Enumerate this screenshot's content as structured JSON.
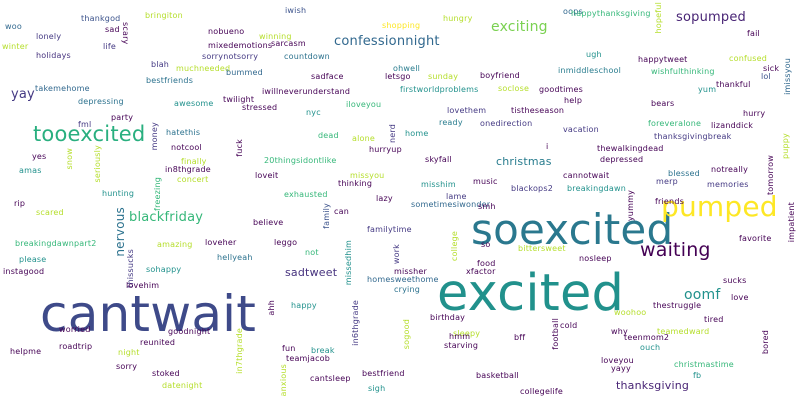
{
  "palette": {
    "dark_purple": "#440154",
    "indigo": "#3b528b",
    "blue": "#31688e",
    "teal": "#21918c",
    "green_teal": "#35b779",
    "green": "#6ece58",
    "lime": "#b5de2b",
    "yellow": "#fde725"
  },
  "words": [
    {
      "key": "cantwait",
      "text": "cantwait"
    },
    {
      "key": "excited",
      "text": "excited"
    },
    {
      "key": "soexcited",
      "text": "soexcited"
    },
    {
      "key": "pumped",
      "text": "pumped"
    },
    {
      "key": "tooexcited",
      "text": "tooexcited"
    },
    {
      "key": "waiting",
      "text": "waiting"
    },
    {
      "key": "sopumped",
      "text": "sopumped"
    },
    {
      "key": "confessionnight",
      "text": "confessionnight"
    },
    {
      "key": "exciting",
      "text": "exciting"
    },
    {
      "key": "oomf",
      "text": "oomf"
    },
    {
      "key": "blackfriday",
      "text": "blackfriday"
    },
    {
      "key": "yay",
      "text": "yay"
    },
    {
      "key": "thanksgiving",
      "text": "thanksgiving"
    },
    {
      "key": "sadtweet",
      "text": "sadtweet"
    },
    {
      "key": "christmas",
      "text": "christmas"
    },
    {
      "key": "nervous",
      "text": "nervous"
    },
    {
      "key": "thankgod",
      "text": "thankgod"
    },
    {
      "key": "bringiton",
      "text": "bringiton"
    },
    {
      "key": "nobueno",
      "text": "nobueno"
    },
    {
      "key": "iwish",
      "text": "iwish"
    },
    {
      "key": "oops",
      "text": "oops"
    },
    {
      "key": "happythanksgiving",
      "text": "happythanksgiving"
    },
    {
      "key": "hopeful",
      "text": "hopeful"
    },
    {
      "key": "woo",
      "text": "woo"
    },
    {
      "key": "lonely",
      "text": "lonely"
    },
    {
      "key": "sad",
      "text": "sad"
    },
    {
      "key": "scary",
      "text": "scary"
    },
    {
      "key": "winning",
      "text": "winning"
    },
    {
      "key": "shopping",
      "text": "shopping"
    },
    {
      "key": "hungry",
      "text": "hungry"
    },
    {
      "key": "fail",
      "text": "fail"
    },
    {
      "key": "winter",
      "text": "winter"
    },
    {
      "key": "holidays",
      "text": "holidays"
    },
    {
      "key": "life",
      "text": "life"
    },
    {
      "key": "mixedemotions",
      "text": "mixedemotions"
    },
    {
      "key": "sarcasm",
      "text": "sarcasm"
    },
    {
      "key": "ugh",
      "text": "ugh"
    },
    {
      "key": "sorrynotsorry",
      "text": "sorrynotsorry"
    },
    {
      "key": "countdown",
      "text": "countdown"
    },
    {
      "key": "happytweet",
      "text": "happytweet"
    },
    {
      "key": "confused",
      "text": "confused"
    },
    {
      "key": "blah",
      "text": "blah"
    },
    {
      "key": "muchneeded",
      "text": "muchneeded"
    },
    {
      "key": "bummed",
      "text": "bummed"
    },
    {
      "key": "sick",
      "text": "sick"
    },
    {
      "key": "imissyou",
      "text": "imissyou"
    },
    {
      "key": "wishfulthinking",
      "text": "wishfulthinking"
    },
    {
      "key": "inmiddleschool",
      "text": "inmiddleschool"
    },
    {
      "key": "lol",
      "text": "lol"
    },
    {
      "key": "bestfriends",
      "text": "bestfriends"
    },
    {
      "key": "sadface",
      "text": "sadface"
    },
    {
      "key": "letsgo",
      "text": "letsgo"
    },
    {
      "key": "sunday",
      "text": "sunday"
    },
    {
      "key": "boyfriend",
      "text": "boyfriend"
    },
    {
      "key": "thankful",
      "text": "thankful"
    },
    {
      "key": "takemehome",
      "text": "takemehome"
    },
    {
      "key": "ohwell",
      "text": "ohwell"
    },
    {
      "key": "firstworldproblems",
      "text": "firstworldproblems"
    },
    {
      "key": "socloseh",
      "text": "soclose"
    },
    {
      "key": "goodtimes",
      "text": "goodtimes"
    },
    {
      "key": "yum",
      "text": "yum"
    },
    {
      "key": "depressing",
      "text": "depressing"
    },
    {
      "key": "iwillneverunderstand",
      "text": "iwillneverunderstand"
    },
    {
      "key": "twilight",
      "text": "twilight"
    },
    {
      "key": "awesome",
      "text": "awesome"
    },
    {
      "key": "iloveyou",
      "text": "iloveyou"
    },
    {
      "key": "help",
      "text": "help"
    },
    {
      "key": "bears",
      "text": "bears"
    },
    {
      "key": "party",
      "text": "party"
    },
    {
      "key": "stressed",
      "text": "stressed"
    },
    {
      "key": "nyc",
      "text": "nyc"
    },
    {
      "key": "lovethem",
      "text": "lovethem"
    },
    {
      "key": "tistheseason",
      "text": "tistheseason"
    },
    {
      "key": "hurry",
      "text": "hurry"
    },
    {
      "key": "fml",
      "text": "fml"
    },
    {
      "key": "money",
      "text": "money"
    },
    {
      "key": "ready",
      "text": "ready"
    },
    {
      "key": "onedirection",
      "text": "onedirection"
    },
    {
      "key": "foreveralone",
      "text": "foreveralone"
    },
    {
      "key": "lizanddick",
      "text": "lizanddick"
    },
    {
      "key": "hatethis",
      "text": "hatethis"
    },
    {
      "key": "dead",
      "text": "dead"
    },
    {
      "key": "alone",
      "text": "alone"
    },
    {
      "key": "nerd",
      "text": "nerd"
    },
    {
      "key": "home",
      "text": "home"
    },
    {
      "key": "vacation",
      "text": "vacation"
    },
    {
      "key": "thanksgivingbreak",
      "text": "thanksgivingbreak"
    },
    {
      "key": "notcool",
      "text": "notcool"
    },
    {
      "key": "hurryup",
      "text": "hurryup"
    },
    {
      "key": "i",
      "text": "i"
    },
    {
      "key": "thewalkingdead",
      "text": "thewalkingdead"
    },
    {
      "key": "yes",
      "text": "yes"
    },
    {
      "key": "finally",
      "text": "finally"
    },
    {
      "key": "fuck",
      "text": "fuck"
    },
    {
      "key": "20thingsidontlike",
      "text": "20thingsidontlike"
    },
    {
      "key": "skyfall",
      "text": "skyfall"
    },
    {
      "key": "depressed",
      "text": "depressed"
    },
    {
      "key": "snow",
      "text": "snow"
    },
    {
      "key": "puppy",
      "text": "puppy"
    },
    {
      "key": "amas",
      "text": "amas"
    },
    {
      "key": "seriously",
      "text": "seriously"
    },
    {
      "key": "in8thgrade",
      "text": "in8thgrade"
    },
    {
      "key": "loveit",
      "text": "loveit"
    },
    {
      "key": "missyou",
      "text": "missyou"
    },
    {
      "key": "cannotwait",
      "text": "cannotwait"
    },
    {
      "key": "blessed",
      "text": "blessed"
    },
    {
      "key": "notreally",
      "text": "notreally"
    },
    {
      "key": "tomorrow",
      "text": "tomorrow"
    },
    {
      "key": "concert",
      "text": "concert"
    },
    {
      "key": "thinking",
      "text": "thinking"
    },
    {
      "key": "misshim",
      "text": "misshim"
    },
    {
      "key": "music",
      "text": "music"
    },
    {
      "key": "blackops2",
      "text": "blackops2"
    },
    {
      "key": "breakingdawn",
      "text": "breakingdawn"
    },
    {
      "key": "merp",
      "text": "merp"
    },
    {
      "key": "memories",
      "text": "memories"
    },
    {
      "key": "hunting",
      "text": "hunting"
    },
    {
      "key": "freezing",
      "text": "freezing"
    },
    {
      "key": "exhausted",
      "text": "exhausted"
    },
    {
      "key": "friends",
      "text": "friends"
    },
    {
      "key": "rip",
      "text": "rip"
    },
    {
      "key": "lazy",
      "text": "lazy"
    },
    {
      "key": "lame",
      "text": "lame"
    },
    {
      "key": "yummy",
      "text": "yummy"
    },
    {
      "key": "scared",
      "text": "scared"
    },
    {
      "key": "family",
      "text": "family"
    },
    {
      "key": "sometimesiwonder",
      "text": "sometimesiwonder"
    },
    {
      "key": "smh",
      "text": "smh"
    },
    {
      "key": "impatient",
      "text": "impatient"
    },
    {
      "key": "can",
      "text": "can"
    },
    {
      "key": "believe",
      "text": "believe"
    },
    {
      "key": "familytime",
      "text": "familytime"
    },
    {
      "key": "college",
      "text": "college"
    },
    {
      "key": "favorite",
      "text": "favorite"
    },
    {
      "key": "amazing",
      "text": "amazing"
    },
    {
      "key": "leggo",
      "text": "leggo"
    },
    {
      "key": "loveher",
      "text": "loveher"
    },
    {
      "key": "missedhim",
      "text": "missedhim"
    },
    {
      "key": "so",
      "text": "so"
    },
    {
      "key": "bittersweet",
      "text": "bittersweet"
    },
    {
      "key": "breakingdawnpart2",
      "text": "breakingdawnpart2"
    },
    {
      "key": "not",
      "text": "not"
    },
    {
      "key": "hellyeah",
      "text": "hellyeah"
    },
    {
      "key": "work",
      "text": "work"
    },
    {
      "key": "nosleep",
      "text": "nosleep"
    },
    {
      "key": "please",
      "text": "please"
    },
    {
      "key": "thissucks",
      "text": "thissucks"
    },
    {
      "key": "sohappy",
      "text": "sohappy"
    },
    {
      "key": "food",
      "text": "food"
    },
    {
      "key": "instagood",
      "text": "instagood"
    },
    {
      "key": "xfactor",
      "text": "xfactor"
    },
    {
      "key": "misher",
      "text": "missher"
    },
    {
      "key": "sucks",
      "text": "sucks"
    },
    {
      "key": "lovehim",
      "text": "lovehim"
    },
    {
      "key": "homesweethome",
      "text": "homesweethome"
    },
    {
      "key": "love",
      "text": "love"
    },
    {
      "key": "thestruggle",
      "text": "thestruggle"
    },
    {
      "key": "happy",
      "text": "happy"
    },
    {
      "key": "crying",
      "text": "crying"
    },
    {
      "key": "ahh",
      "text": "ahh"
    },
    {
      "key": "in6thgrade",
      "text": "in6thgrade"
    },
    {
      "key": "woohoo",
      "text": "woohoo"
    },
    {
      "key": "birthday",
      "text": "birthday"
    },
    {
      "key": "tired",
      "text": "tired"
    },
    {
      "key": "worried",
      "text": "worried"
    },
    {
      "key": "goodnight",
      "text": "goodnight"
    },
    {
      "key": "cold",
      "text": "cold"
    },
    {
      "key": "teamedward",
      "text": "teamedward"
    },
    {
      "key": "sleepy",
      "text": "sleepy"
    },
    {
      "key": "why",
      "text": "why"
    },
    {
      "key": "sogood",
      "text": "sogood"
    },
    {
      "key": "teenmom2",
      "text": "teenmom2"
    },
    {
      "key": "roadtrip",
      "text": "roadtrip"
    },
    {
      "key": "reunited",
      "text": "reunited"
    },
    {
      "key": "in7thgrade",
      "text": "in7thgrade"
    },
    {
      "key": "hmm",
      "text": "hmm"
    },
    {
      "key": "bff",
      "text": "bff"
    },
    {
      "key": "football",
      "text": "football"
    },
    {
      "key": "bored",
      "text": "bored"
    },
    {
      "key": "helpme",
      "text": "helpme"
    },
    {
      "key": "night",
      "text": "night"
    },
    {
      "key": "fun",
      "text": "fun"
    },
    {
      "key": "break",
      "text": "break"
    },
    {
      "key": "starving",
      "text": "starving"
    },
    {
      "key": "ouch",
      "text": "ouch"
    },
    {
      "key": "teamjacob",
      "text": "teamjacob"
    },
    {
      "key": "loveyou",
      "text": "loveyou"
    },
    {
      "key": "christmastime",
      "text": "christmastime"
    },
    {
      "key": "sorry",
      "text": "sorry"
    },
    {
      "key": "yayy",
      "text": "yayy"
    },
    {
      "key": "stoked",
      "text": "stoked"
    },
    {
      "key": "bestfriend",
      "text": "bestfriend"
    },
    {
      "key": "basketball",
      "text": "basketball"
    },
    {
      "key": "fb",
      "text": "fb"
    },
    {
      "key": "cantsleep",
      "text": "cantsleep"
    },
    {
      "key": "anxious",
      "text": "anxious"
    },
    {
      "key": "datenight",
      "text": "datenight"
    },
    {
      "key": "sigh",
      "text": "sigh"
    },
    {
      "key": "collegelife",
      "text": "collegelife"
    }
  ]
}
